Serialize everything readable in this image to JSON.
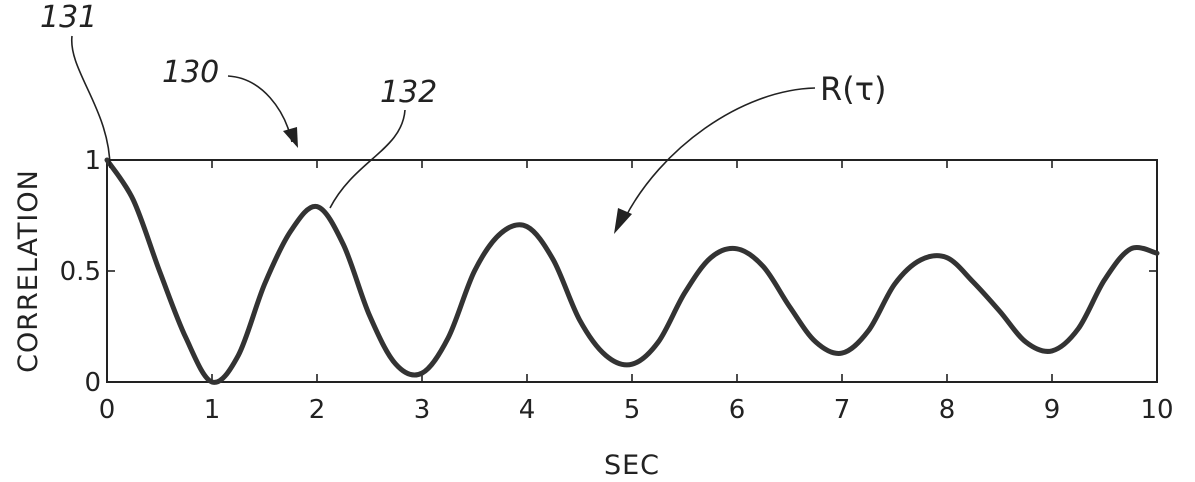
{
  "chart_data": {
    "type": "line",
    "title": "",
    "xlabel": "SEC",
    "ylabel": "CORRELATION",
    "xlim": [
      0,
      10
    ],
    "ylim": [
      0,
      1
    ],
    "x_ticks": [
      0,
      1,
      2,
      3,
      4,
      5,
      6,
      7,
      8,
      9,
      10
    ],
    "y_ticks": [
      0,
      0.5,
      1
    ],
    "x_tick_labels": [
      "0",
      "1",
      "2",
      "3",
      "4",
      "5",
      "6",
      "7",
      "8",
      "9",
      "10"
    ],
    "y_tick_labels": [
      "0",
      "0.5",
      "1"
    ],
    "grid": false,
    "series": [
      {
        "name": "R(τ)",
        "x": [
          0,
          0.25,
          0.5,
          0.75,
          1,
          1.25,
          1.5,
          1.75,
          2,
          2.25,
          2.5,
          2.75,
          3,
          3.25,
          3.5,
          3.75,
          4,
          4.25,
          4.5,
          4.75,
          5,
          5.25,
          5.5,
          5.75,
          6,
          6.25,
          6.5,
          6.75,
          7,
          7.25,
          7.5,
          7.75,
          8,
          8.25,
          8.5,
          8.75,
          9,
          9.25,
          9.5,
          9.75,
          10
        ],
        "y": [
          1.0,
          0.82,
          0.5,
          0.2,
          0.0,
          0.12,
          0.44,
          0.68,
          0.79,
          0.62,
          0.3,
          0.08,
          0.04,
          0.2,
          0.5,
          0.67,
          0.7,
          0.55,
          0.28,
          0.12,
          0.08,
          0.18,
          0.4,
          0.56,
          0.6,
          0.52,
          0.34,
          0.18,
          0.13,
          0.23,
          0.44,
          0.55,
          0.56,
          0.45,
          0.32,
          0.18,
          0.14,
          0.24,
          0.46,
          0.6,
          0.58
        ]
      }
    ],
    "annotations": {
      "ref_130": "130",
      "ref_131": "131",
      "ref_132": "132",
      "curve_label": "R(τ)"
    }
  }
}
